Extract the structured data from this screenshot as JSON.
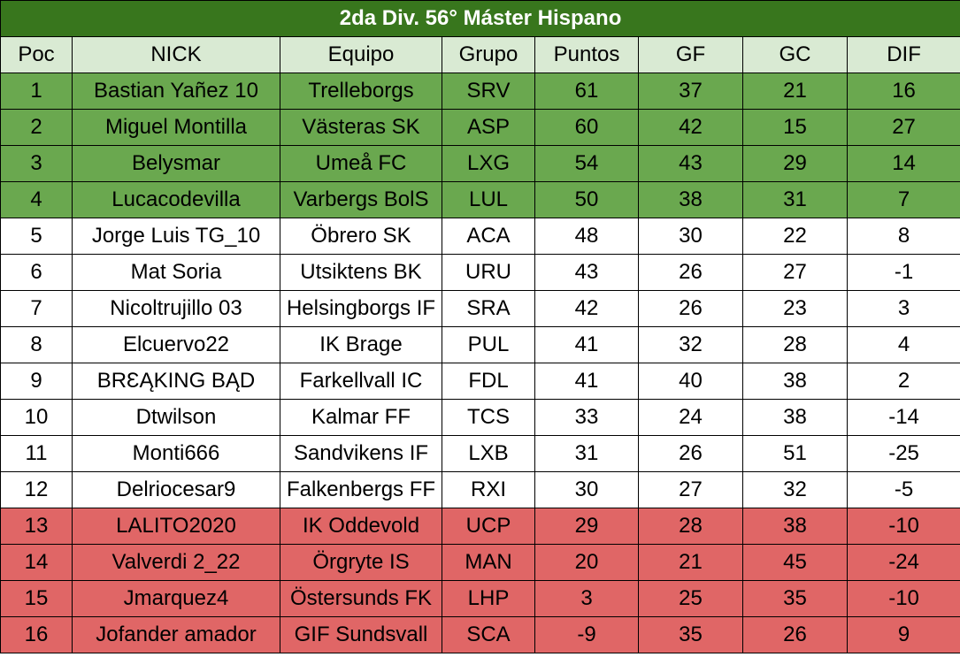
{
  "title": "2da Div. 56° Máster Hispano",
  "headers": [
    "Poc",
    "NICK",
    "Equipo",
    "Grupo",
    "Puntos",
    "GF",
    "GC",
    "DIF"
  ],
  "colors": {
    "title_bg": "#38761d",
    "header_bg": "#d9ead3",
    "promotion": "#6aa84f",
    "neutral": "#ffffff",
    "relegation": "#e06666"
  },
  "rows": [
    {
      "zone": "promo",
      "cells": [
        "1",
        "Bastian Yañez 10",
        "Trelleborgs",
        "SRV",
        "61",
        "37",
        "21",
        "16"
      ]
    },
    {
      "zone": "promo",
      "cells": [
        "2",
        "Miguel Montilla",
        "Västeras SK",
        "ASP",
        "60",
        "42",
        "15",
        "27"
      ]
    },
    {
      "zone": "promo",
      "cells": [
        "3",
        "Belysmar",
        "Umeå FC",
        "LXG",
        "54",
        "43",
        "29",
        "14"
      ]
    },
    {
      "zone": "promo",
      "cells": [
        "4",
        "Lucacodevilla",
        "Varbergs BolS",
        "LUL",
        "50",
        "38",
        "31",
        "7"
      ]
    },
    {
      "zone": "neutral",
      "cells": [
        "5",
        "Jorge Luis TG_10",
        "Öbrero SK",
        "ACA",
        "48",
        "30",
        "22",
        "8"
      ]
    },
    {
      "zone": "neutral",
      "cells": [
        "6",
        "Mat Soria",
        "Utsiktens BK",
        "URU",
        "43",
        "26",
        "27",
        "-1"
      ]
    },
    {
      "zone": "neutral",
      "cells": [
        "7",
        "Nicoltrujillo 03",
        "Helsingborgs IF",
        "SRA",
        "42",
        "26",
        "23",
        "3"
      ]
    },
    {
      "zone": "neutral",
      "cells": [
        "8",
        "Elcuervo22",
        "IK Brage",
        "PUL",
        "41",
        "32",
        "28",
        "4"
      ]
    },
    {
      "zone": "neutral",
      "cells": [
        "9",
        "BRƐĄKING BĄD",
        "Farkellvall IC",
        "FDL",
        "41",
        "40",
        "38",
        "2"
      ]
    },
    {
      "zone": "neutral",
      "cells": [
        "10",
        "Dtwilson",
        "Kalmar FF",
        "TCS",
        "33",
        "24",
        "38",
        "-14"
      ]
    },
    {
      "zone": "neutral",
      "cells": [
        "11",
        "Monti666",
        "Sandvikens IF",
        "LXB",
        "31",
        "26",
        "51",
        "-25"
      ]
    },
    {
      "zone": "neutral",
      "cells": [
        "12",
        "Delriocesar9",
        "Falkenbergs FF",
        "RXI",
        "30",
        "27",
        "32",
        "-5"
      ]
    },
    {
      "zone": "releg",
      "cells": [
        "13",
        "LALITO2020",
        "IK Oddevold",
        "UCP",
        "29",
        "28",
        "38",
        "-10"
      ]
    },
    {
      "zone": "releg",
      "cells": [
        "14",
        "Valverdi 2_22",
        "Örgryte IS",
        "MAN",
        "20",
        "21",
        "45",
        "-24"
      ]
    },
    {
      "zone": "releg",
      "cells": [
        "15",
        "Jmarquez4",
        "Östersunds FK",
        "LHP",
        "3",
        "25",
        "35",
        "-10"
      ]
    },
    {
      "zone": "releg",
      "cells": [
        "16",
        "Jofander amador",
        "GIF Sundsvall",
        "SCA",
        "-9",
        "35",
        "26",
        "9"
      ]
    }
  ]
}
